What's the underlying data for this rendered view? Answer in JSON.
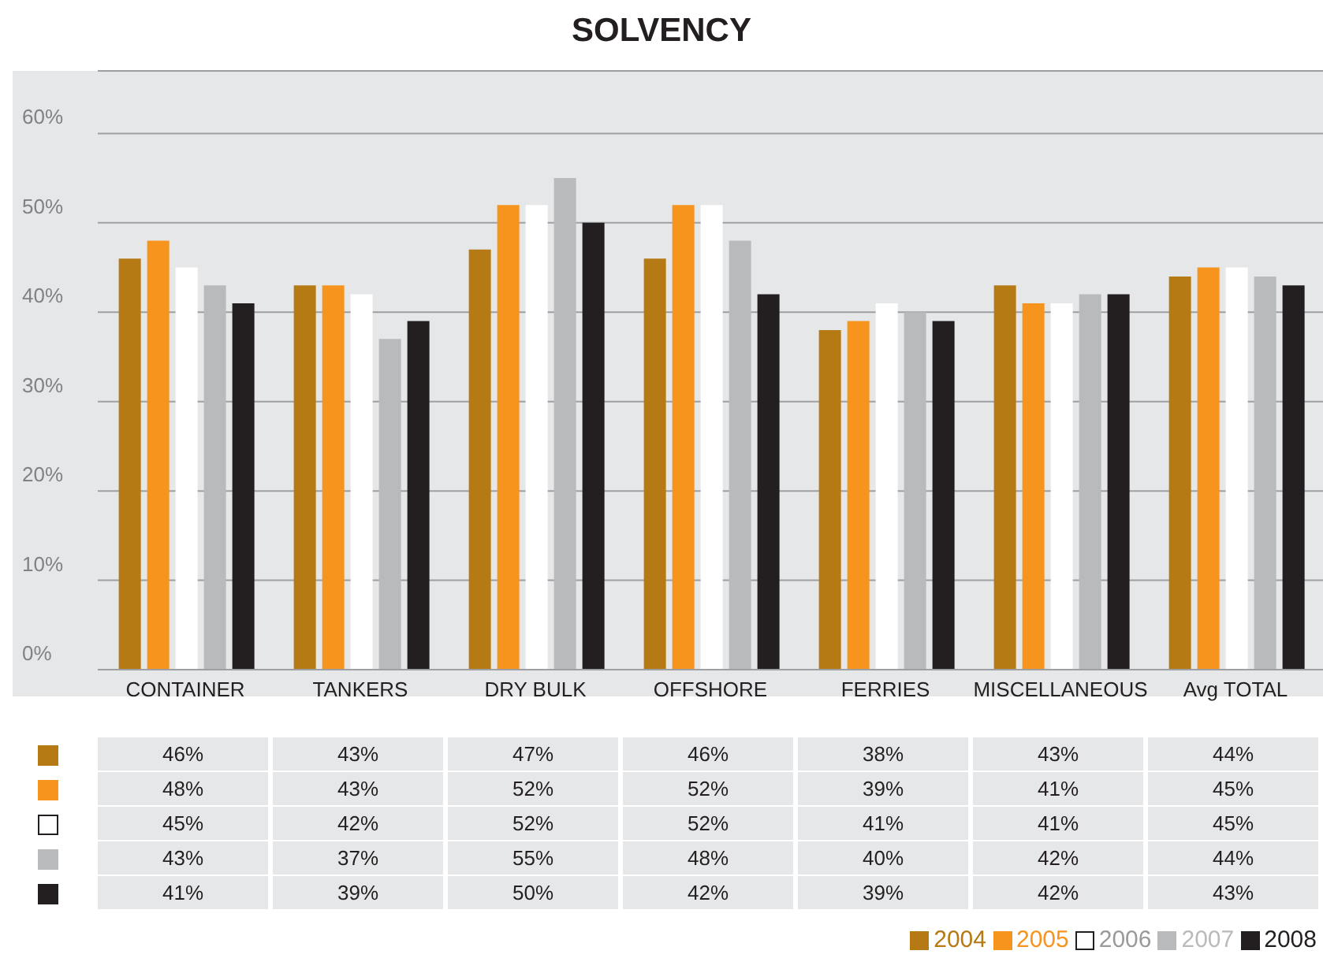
{
  "chart_data": {
    "type": "bar",
    "title": "SOLVENCY",
    "categories": [
      "CONTAINER",
      "TANKERS",
      "DRY BULK",
      "OFFSHORE",
      "FERRIES",
      "MISCELLANEOUS",
      "Avg TOTAL"
    ],
    "series": [
      {
        "name": "2004",
        "color": "#b57a14",
        "values": [
          46,
          43,
          47,
          46,
          38,
          43,
          44
        ],
        "value_labels": [
          "46%",
          "43%",
          "47%",
          "46%",
          "38%",
          "43%",
          "44%"
        ]
      },
      {
        "name": "2005",
        "color": "#f7941d",
        "values": [
          48,
          43,
          52,
          52,
          39,
          41,
          45
        ],
        "value_labels": [
          "48%",
          "43%",
          "52%",
          "52%",
          "39%",
          "41%",
          "45%"
        ]
      },
      {
        "name": "2006",
        "color": "#ffffff",
        "values": [
          45,
          42,
          52,
          52,
          41,
          41,
          45
        ],
        "value_labels": [
          "45%",
          "42%",
          "52%",
          "52%",
          "41%",
          "41%",
          "45%"
        ]
      },
      {
        "name": "2007",
        "color": "#b9babc",
        "values": [
          43,
          37,
          55,
          48,
          40,
          42,
          44
        ],
        "value_labels": [
          "43%",
          "37%",
          "55%",
          "48%",
          "40%",
          "42%",
          "44%"
        ]
      },
      {
        "name": "2008",
        "color": "#231f20",
        "values": [
          41,
          39,
          50,
          42,
          39,
          42,
          43
        ],
        "value_labels": [
          "41%",
          "39%",
          "50%",
          "42%",
          "39%",
          "42%",
          "43%"
        ]
      }
    ],
    "ylim": [
      0,
      67
    ],
    "yticks": [
      {
        "value": 0,
        "label": "0%"
      },
      {
        "value": 10,
        "label": "10%"
      },
      {
        "value": 20,
        "label": "20%"
      },
      {
        "value": 30,
        "label": "30%"
      },
      {
        "value": 40,
        "label": "40%"
      },
      {
        "value": 50,
        "label": "50%"
      },
      {
        "value": 60,
        "label": "60%"
      }
    ],
    "grid": "y",
    "legend": "bottom right"
  }
}
